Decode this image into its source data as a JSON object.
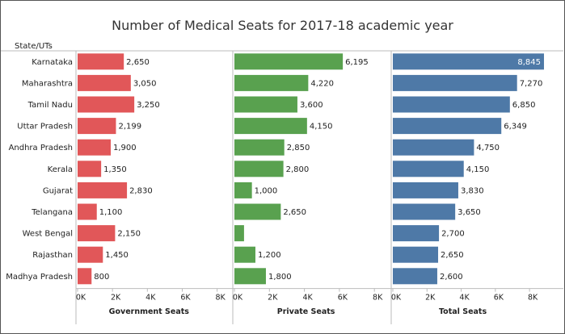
{
  "title": "Number of Medical Seats for 2017-18 academic year",
  "colors": {
    "government": "#e15759",
    "private": "#59a14f",
    "total": "#4e79a7",
    "text": "#222222",
    "axis": "#555555",
    "divider": "#bbbbbb"
  },
  "chart_data": {
    "type": "bar",
    "orientation": "horizontal",
    "row_header": "State/UTs",
    "categories": [
      "Karnataka",
      "Maharashtra",
      "Tamil Nadu",
      "Uttar Pradesh",
      "Andhra Pradesh",
      "Kerala",
      "Gujarat",
      "Telangana",
      "West Bengal",
      "Rajasthan",
      "Madhya Pradesh"
    ],
    "xlim": [
      0,
      9000
    ],
    "ticks": [
      0,
      2000,
      4000,
      6000,
      8000
    ],
    "tick_labels": [
      "0K",
      "2K",
      "4K",
      "6K",
      "8K"
    ],
    "grid": false,
    "panels": [
      {
        "key": "government",
        "name": "Government Seats",
        "values": [
          2650,
          3050,
          3250,
          2199,
          1900,
          1350,
          2830,
          1100,
          2150,
          1450,
          800
        ],
        "labels": [
          "2,650",
          "3,050",
          "3,250",
          "2,199",
          "1,900",
          "1,350",
          "2,830",
          "1,100",
          "2,150",
          "1,450",
          "800"
        ]
      },
      {
        "key": "private",
        "name": "Private Seats",
        "values": [
          6195,
          4220,
          3600,
          4150,
          2850,
          2800,
          1000,
          2650,
          550,
          1200,
          1800
        ],
        "labels": [
          "6,195",
          "4,220",
          "3,600",
          "4,150",
          "2,850",
          "2,800",
          "1,000",
          "2,650",
          "",
          "1,200",
          "1,800"
        ]
      },
      {
        "key": "total",
        "name": "Total Seats",
        "values": [
          8845,
          7270,
          6850,
          6349,
          4750,
          4150,
          3830,
          3650,
          2700,
          2650,
          2600
        ],
        "labels": [
          "8,845",
          "7,270",
          "6,850",
          "6,349",
          "4,750",
          "4,150",
          "3,830",
          "3,650",
          "2,700",
          "2,650",
          "2,600"
        ]
      }
    ]
  }
}
